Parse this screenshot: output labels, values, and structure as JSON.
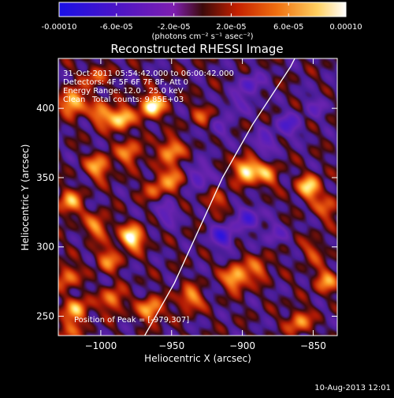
{
  "colorbar": {
    "tick_labels": [
      "-0.00010",
      "-6.0e-05",
      "-2.0e-05",
      "2.0e-05",
      "6.0e-05",
      "0.00010"
    ],
    "tick_values": [
      -0.0001,
      -6e-05,
      -2e-05,
      2e-05,
      6e-05,
      0.0001
    ],
    "range": [
      -0.0001,
      0.0001
    ],
    "unit_label": "(photons cm⁻² s⁻¹ asec⁻²)"
  },
  "annotations": {
    "time_range": "31-Oct-2011 05:54:42.000 to 06:00:42.000",
    "detectors": "Detectors: 4F 5F 6F 7F 8F, Att 0",
    "energy": "Energy Range: 12.0 - 25.0 keV",
    "method": "Clean",
    "counts": "Total counts: 9.85E+03",
    "peak": "Position of Peak = [-979,307]"
  },
  "footer": {
    "date": "10-Aug-2013 12:01"
  },
  "chart_data": {
    "type": "heatmap",
    "title": "Reconstructed RHESSI Image",
    "xlabel": "Heliocentric X (arcsec)",
    "ylabel": "Heliocentric Y (arcsec)",
    "xlim": [
      -1030,
      -833
    ],
    "ylim": [
      236,
      436
    ],
    "x_ticks": [
      -1000,
      -950,
      -900,
      -850
    ],
    "x_tick_labels": [
      "−1000",
      "−950",
      "−900",
      "−850"
    ],
    "y_ticks": [
      250,
      300,
      350,
      400
    ],
    "y_tick_labels": [
      "250",
      "300",
      "350",
      "400"
    ],
    "colormap": "blue-purple-red-orange-yellow-white",
    "limb_line": [
      [
        -969,
        236
      ],
      [
        -948,
        274
      ],
      [
        -931,
        312
      ],
      [
        -914,
        350
      ],
      [
        -893,
        388
      ],
      [
        -866,
        430
      ],
      [
        -863,
        436
      ]
    ],
    "sources": [
      {
        "x": -1020,
        "y": 405,
        "v": 0.9
      },
      {
        "x": -1002,
        "y": 358,
        "v": 0.7
      },
      {
        "x": -1000,
        "y": 396,
        "v": 0.6
      },
      {
        "x": -986,
        "y": 393,
        "v": 0.85
      },
      {
        "x": -980,
        "y": 368,
        "v": 0.6
      },
      {
        "x": -964,
        "y": 402,
        "v": 1.0
      },
      {
        "x": -951,
        "y": 370,
        "v": 0.7
      },
      {
        "x": -949,
        "y": 351,
        "v": 0.6
      },
      {
        "x": -962,
        "y": 342,
        "v": 0.45
      },
      {
        "x": -1022,
        "y": 332,
        "v": 0.7
      },
      {
        "x": -1003,
        "y": 315,
        "v": 0.6
      },
      {
        "x": -978,
        "y": 307,
        "v": 1.0
      },
      {
        "x": -995,
        "y": 291,
        "v": 0.55
      },
      {
        "x": -1024,
        "y": 279,
        "v": 0.55
      },
      {
        "x": -1017,
        "y": 255,
        "v": 0.7
      },
      {
        "x": -992,
        "y": 262,
        "v": 0.6
      },
      {
        "x": -965,
        "y": 255,
        "v": 0.75
      },
      {
        "x": -937,
        "y": 263,
        "v": 0.65
      },
      {
        "x": -1024,
        "y": 240,
        "v": 0.45
      },
      {
        "x": -897,
        "y": 356,
        "v": 1.0
      },
      {
        "x": -883,
        "y": 352,
        "v": 0.55
      },
      {
        "x": -853,
        "y": 343,
        "v": 0.85
      },
      {
        "x": -840,
        "y": 328,
        "v": 0.45
      },
      {
        "x": -905,
        "y": 278,
        "v": 0.85
      },
      {
        "x": -889,
        "y": 285,
        "v": 0.5
      },
      {
        "x": -917,
        "y": 333,
        "v": 0.35
      },
      {
        "x": -841,
        "y": 276,
        "v": 0.6
      },
      {
        "x": -860,
        "y": 246,
        "v": 0.6
      },
      {
        "x": -850,
        "y": 297,
        "v": 0.35
      },
      {
        "x": -928,
        "y": 395,
        "v": 0.35
      },
      {
        "x": -1004,
        "y": 423,
        "v": 0.45
      },
      {
        "x": -848,
        "y": 402,
        "v": -0.3
      },
      {
        "x": -954,
        "y": 325,
        "v": -0.45
      },
      {
        "x": -914,
        "y": 308,
        "v": -0.7
      },
      {
        "x": -931,
        "y": 352,
        "v": -0.55
      },
      {
        "x": -896,
        "y": 322,
        "v": -0.6
      },
      {
        "x": -878,
        "y": 310,
        "v": -0.35
      },
      {
        "x": -885,
        "y": 375,
        "v": -0.45
      },
      {
        "x": -868,
        "y": 388,
        "v": -0.55
      },
      {
        "x": -894,
        "y": 417,
        "v": -0.5
      },
      {
        "x": -905,
        "y": 403,
        "v": -0.35
      },
      {
        "x": -917,
        "y": 385,
        "v": -0.3
      }
    ]
  }
}
